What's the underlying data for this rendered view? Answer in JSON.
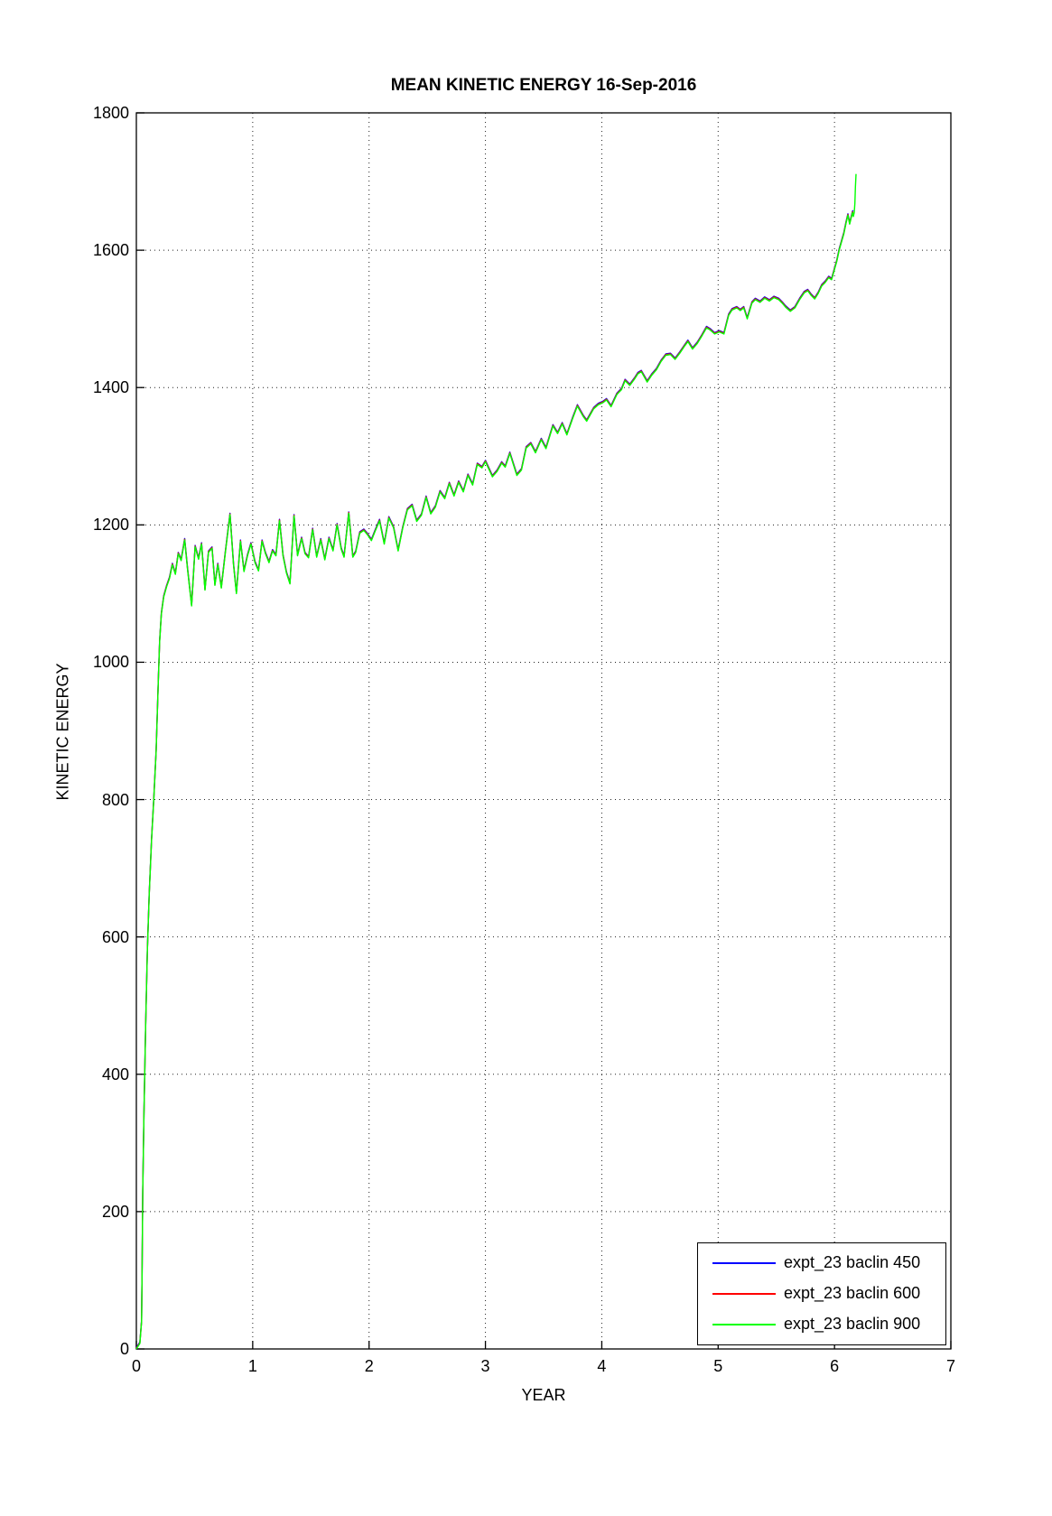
{
  "chart_data": {
    "type": "line",
    "title": "MEAN KINETIC ENERGY 16-Sep-2016",
    "xlabel": "YEAR",
    "ylabel": "KINETIC ENERGY",
    "xlim": [
      0,
      7
    ],
    "ylim": [
      0,
      1800
    ],
    "xticks": [
      0,
      1,
      2,
      3,
      4,
      5,
      6,
      7
    ],
    "yticks": [
      0,
      200,
      400,
      600,
      800,
      1000,
      1200,
      1400,
      1600,
      1800
    ],
    "grid": "dotted",
    "legend_position": "lower-right",
    "overlap_note": "three series nearly coincide; green drawn on top, blue/red fringes visible at peaks and at the final spike",
    "series": [
      {
        "name": "expt_23 baclin 450",
        "color": "#0000ff",
        "t_end": 6.16,
        "v_end": 1658,
        "v_offset": 2
      },
      {
        "name": "expt_23 baclin 600",
        "color": "#ff0000",
        "t_end": 6.165,
        "v_end": 1655,
        "v_offset": 1
      },
      {
        "name": "expt_23 baclin 900",
        "color": "#00ff00",
        "t_end": 6.185,
        "v_end": 1711,
        "v_offset": 0
      }
    ],
    "points": [
      [
        0.0,
        0
      ],
      [
        0.03,
        8
      ],
      [
        0.045,
        40
      ],
      [
        0.05,
        120
      ],
      [
        0.055,
        230
      ],
      [
        0.065,
        340
      ],
      [
        0.08,
        470
      ],
      [
        0.095,
        580
      ],
      [
        0.11,
        660
      ],
      [
        0.13,
        740
      ],
      [
        0.15,
        800
      ],
      [
        0.17,
        870
      ],
      [
        0.19,
        980
      ],
      [
        0.2,
        1030
      ],
      [
        0.215,
        1070
      ],
      [
        0.235,
        1095
      ],
      [
        0.26,
        1110
      ],
      [
        0.285,
        1122
      ],
      [
        0.31,
        1142
      ],
      [
        0.335,
        1128
      ],
      [
        0.36,
        1158
      ],
      [
        0.385,
        1148
      ],
      [
        0.415,
        1178
      ],
      [
        0.44,
        1135
      ],
      [
        0.475,
        1082
      ],
      [
        0.505,
        1168
      ],
      [
        0.535,
        1150
      ],
      [
        0.56,
        1172
      ],
      [
        0.59,
        1105
      ],
      [
        0.62,
        1160
      ],
      [
        0.65,
        1166
      ],
      [
        0.675,
        1112
      ],
      [
        0.7,
        1142
      ],
      [
        0.73,
        1108
      ],
      [
        0.765,
        1160
      ],
      [
        0.805,
        1215
      ],
      [
        0.835,
        1142
      ],
      [
        0.86,
        1100
      ],
      [
        0.895,
        1176
      ],
      [
        0.925,
        1132
      ],
      [
        0.955,
        1155
      ],
      [
        0.985,
        1172
      ],
      [
        1.02,
        1145
      ],
      [
        1.05,
        1133
      ],
      [
        1.08,
        1176
      ],
      [
        1.11,
        1158
      ],
      [
        1.14,
        1145
      ],
      [
        1.17,
        1162
      ],
      [
        1.2,
        1155
      ],
      [
        1.23,
        1206
      ],
      [
        1.26,
        1155
      ],
      [
        1.29,
        1130
      ],
      [
        1.32,
        1114
      ],
      [
        1.355,
        1213
      ],
      [
        1.385,
        1155
      ],
      [
        1.42,
        1180
      ],
      [
        1.45,
        1158
      ],
      [
        1.48,
        1152
      ],
      [
        1.515,
        1193
      ],
      [
        1.55,
        1153
      ],
      [
        1.585,
        1178
      ],
      [
        1.62,
        1149
      ],
      [
        1.655,
        1180
      ],
      [
        1.69,
        1162
      ],
      [
        1.725,
        1200
      ],
      [
        1.76,
        1165
      ],
      [
        1.785,
        1153
      ],
      [
        1.825,
        1217
      ],
      [
        1.86,
        1153
      ],
      [
        1.885,
        1160
      ],
      [
        1.92,
        1188
      ],
      [
        1.955,
        1192
      ],
      [
        1.985,
        1186
      ],
      [
        2.02,
        1177
      ],
      [
        2.05,
        1190
      ],
      [
        2.09,
        1206
      ],
      [
        2.13,
        1172
      ],
      [
        2.17,
        1210
      ],
      [
        2.21,
        1196
      ],
      [
        2.25,
        1162
      ],
      [
        2.29,
        1196
      ],
      [
        2.33,
        1222
      ],
      [
        2.37,
        1228
      ],
      [
        2.41,
        1205
      ],
      [
        2.45,
        1214
      ],
      [
        2.49,
        1240
      ],
      [
        2.53,
        1216
      ],
      [
        2.57,
        1226
      ],
      [
        2.61,
        1248
      ],
      [
        2.65,
        1238
      ],
      [
        2.69,
        1260
      ],
      [
        2.73,
        1242
      ],
      [
        2.77,
        1262
      ],
      [
        2.81,
        1248
      ],
      [
        2.85,
        1272
      ],
      [
        2.89,
        1258
      ],
      [
        2.93,
        1288
      ],
      [
        2.97,
        1283
      ],
      [
        3.0,
        1292
      ],
      [
        3.06,
        1270
      ],
      [
        3.1,
        1278
      ],
      [
        3.14,
        1290
      ],
      [
        3.17,
        1284
      ],
      [
        3.21,
        1304
      ],
      [
        3.27,
        1272
      ],
      [
        3.31,
        1280
      ],
      [
        3.35,
        1312
      ],
      [
        3.39,
        1318
      ],
      [
        3.43,
        1305
      ],
      [
        3.48,
        1324
      ],
      [
        3.52,
        1311
      ],
      [
        3.58,
        1344
      ],
      [
        3.62,
        1333
      ],
      [
        3.66,
        1347
      ],
      [
        3.7,
        1331
      ],
      [
        3.75,
        1355
      ],
      [
        3.79,
        1373
      ],
      [
        3.84,
        1358
      ],
      [
        3.87,
        1351
      ],
      [
        3.93,
        1369
      ],
      [
        3.97,
        1375
      ],
      [
        4.01,
        1378
      ],
      [
        4.04,
        1382
      ],
      [
        4.08,
        1372
      ],
      [
        4.13,
        1390
      ],
      [
        4.17,
        1397
      ],
      [
        4.2,
        1410
      ],
      [
        4.24,
        1403
      ],
      [
        4.28,
        1412
      ],
      [
        4.31,
        1420
      ],
      [
        4.34,
        1423
      ],
      [
        4.39,
        1408
      ],
      [
        4.43,
        1418
      ],
      [
        4.47,
        1426
      ],
      [
        4.51,
        1438
      ],
      [
        4.55,
        1447
      ],
      [
        4.59,
        1448
      ],
      [
        4.63,
        1441
      ],
      [
        4.67,
        1450
      ],
      [
        4.71,
        1460
      ],
      [
        4.74,
        1467
      ],
      [
        4.78,
        1456
      ],
      [
        4.82,
        1464
      ],
      [
        4.86,
        1475
      ],
      [
        4.9,
        1487
      ],
      [
        4.93,
        1484
      ],
      [
        4.97,
        1478
      ],
      [
        5.01,
        1481
      ],
      [
        5.05,
        1478
      ],
      [
        5.09,
        1505
      ],
      [
        5.12,
        1513
      ],
      [
        5.16,
        1516
      ],
      [
        5.19,
        1512
      ],
      [
        5.22,
        1516
      ],
      [
        5.25,
        1500
      ],
      [
        5.29,
        1523
      ],
      [
        5.32,
        1528
      ],
      [
        5.36,
        1524
      ],
      [
        5.4,
        1530
      ],
      [
        5.44,
        1526
      ],
      [
        5.48,
        1531
      ],
      [
        5.52,
        1528
      ],
      [
        5.55,
        1523
      ],
      [
        5.58,
        1517
      ],
      [
        5.62,
        1511
      ],
      [
        5.66,
        1516
      ],
      [
        5.7,
        1528
      ],
      [
        5.74,
        1538
      ],
      [
        5.77,
        1541
      ],
      [
        5.8,
        1534
      ],
      [
        5.83,
        1529
      ],
      [
        5.86,
        1537
      ],
      [
        5.89,
        1548
      ],
      [
        5.92,
        1553
      ],
      [
        5.95,
        1560
      ],
      [
        5.975,
        1557
      ],
      [
        6.0,
        1572
      ],
      [
        6.02,
        1584
      ],
      [
        6.04,
        1600
      ],
      [
        6.06,
        1612
      ],
      [
        6.08,
        1624
      ],
      [
        6.1,
        1640
      ],
      [
        6.115,
        1651
      ],
      [
        6.13,
        1638
      ],
      [
        6.145,
        1648
      ],
      [
        6.155,
        1655
      ],
      [
        6.162,
        1649
      ],
      [
        6.17,
        1655
      ],
      [
        6.175,
        1668
      ],
      [
        6.18,
        1692
      ],
      [
        6.185,
        1711
      ]
    ]
  }
}
